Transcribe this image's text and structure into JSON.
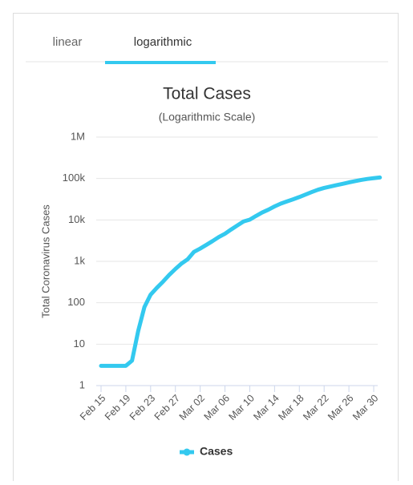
{
  "tabs": [
    "linear",
    "logarithmic"
  ],
  "chart_data": {
    "type": "line",
    "title": "Total Cases",
    "subtitle": "(Logarithmic Scale)",
    "y_label": "Total Coronavirus Cases",
    "log_scale": true,
    "grid": true,
    "categories": [
      "Feb 15",
      null,
      null,
      null,
      "Feb 19",
      null,
      null,
      null,
      "Feb 23",
      null,
      null,
      null,
      "Feb 27",
      null,
      null,
      null,
      "Mar 02",
      null,
      null,
      null,
      "Mar 06",
      null,
      null,
      null,
      "Mar 10",
      null,
      null,
      null,
      "Mar 14",
      null,
      null,
      null,
      "Mar 18",
      null,
      null,
      null,
      "Mar 22",
      null,
      null,
      null,
      "Mar 26",
      null,
      null,
      null,
      "Mar 30",
      null
    ],
    "series": [
      {
        "name": "Cases",
        "color": "#33c9ef",
        "values": [
          3,
          3,
          3,
          3,
          3,
          4,
          21,
          79,
          157,
          229,
          323,
          470,
          655,
          889,
          1128,
          1694,
          2036,
          2502,
          3089,
          3858,
          4636,
          5883,
          7375,
          9172,
          10149,
          12462,
          15113,
          17660,
          21157,
          24747,
          27980,
          31506,
          35713,
          41035,
          47021,
          53578,
          59138,
          63927,
          69176,
          74386,
          80589,
          86498,
          92472,
          97689,
          101739,
          105792
        ]
      }
    ],
    "ylim": [
      1,
      1000000
    ],
    "yticks": [
      1,
      10,
      100,
      {
        "value": 1000,
        "label": "1k"
      },
      {
        "value": 10000,
        "label": "10k"
      },
      {
        "value": 100000,
        "label": "100k"
      },
      {
        "value": 1000000,
        "label": "1M"
      }
    ]
  }
}
